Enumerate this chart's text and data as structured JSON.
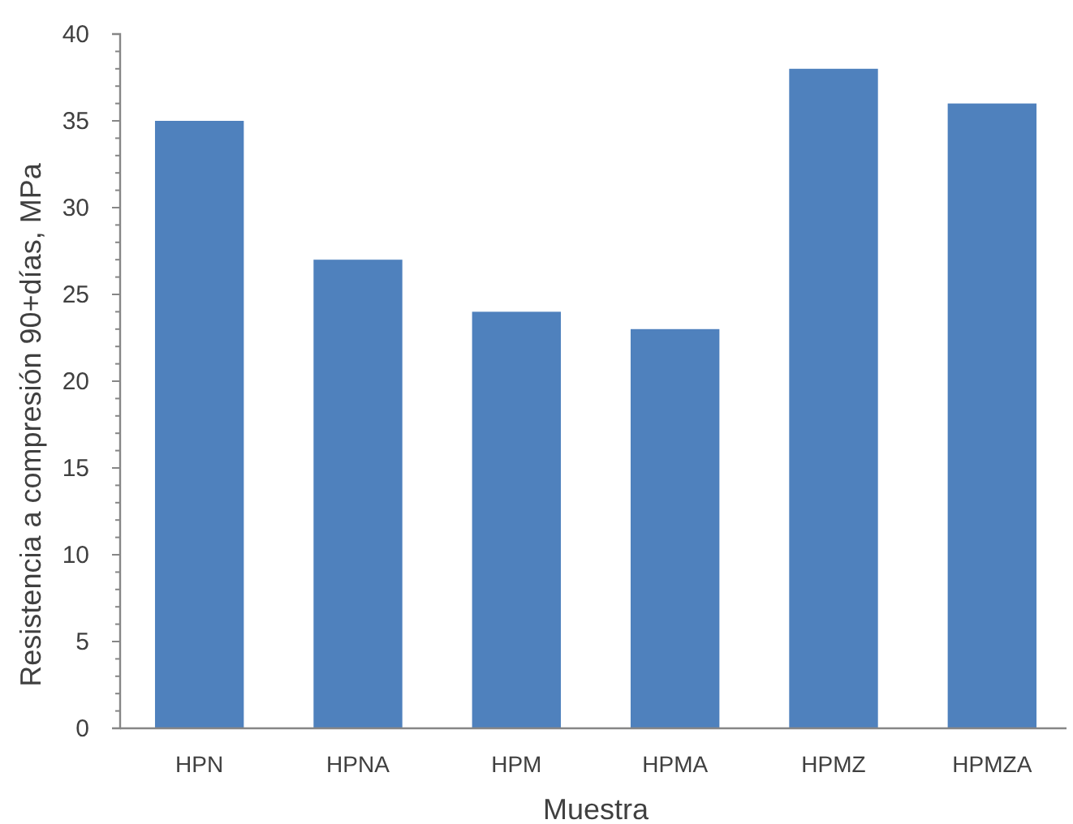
{
  "chart_data": {
    "type": "bar",
    "xlabel": "Muestra",
    "ylabel": "Resistencia a compresión 90+días, MPa",
    "categories": [
      "HPN",
      "HPNA",
      "HPM",
      "HPMA",
      "HPMZ",
      "HPMZA"
    ],
    "values": [
      35,
      27,
      24,
      23,
      38,
      36
    ],
    "color": "#4f81bd",
    "ylim": [
      0,
      40
    ],
    "yticks": [
      0,
      {
        "value": 1,
        "label": null
      },
      {
        "value": 2,
        "label": null
      },
      {
        "value": 3,
        "label": null
      },
      {
        "value": 4,
        "label": null
      },
      5,
      {
        "value": 6,
        "label": null
      },
      {
        "value": 7,
        "label": null
      },
      {
        "value": 8,
        "label": null
      },
      {
        "value": 9,
        "label": null
      },
      10,
      {
        "value": 11,
        "label": null
      },
      {
        "value": 12,
        "label": null
      },
      {
        "value": 13,
        "label": null
      },
      {
        "value": 14,
        "label": null
      },
      15,
      {
        "value": 16,
        "label": null
      },
      {
        "value": 17,
        "label": null
      },
      {
        "value": 18,
        "label": null
      },
      {
        "value": 19,
        "label": null
      },
      20,
      {
        "value": 21,
        "label": null
      },
      {
        "value": 22,
        "label": null
      },
      {
        "value": 23,
        "label": null
      },
      {
        "value": 24,
        "label": null
      },
      25,
      {
        "value": 26,
        "label": null
      },
      {
        "value": 27,
        "label": null
      },
      {
        "value": 28,
        "label": null
      },
      {
        "value": 29,
        "label": null
      },
      30,
      {
        "value": 31,
        "label": null
      },
      {
        "value": 32,
        "label": null
      },
      {
        "value": 33,
        "label": null
      },
      {
        "value": 34,
        "label": null
      },
      35,
      {
        "value": 36,
        "label": null
      },
      {
        "value": 37,
        "label": null
      },
      {
        "value": 38,
        "label": null
      },
      {
        "value": 39,
        "label": null
      },
      40
    ]
  }
}
